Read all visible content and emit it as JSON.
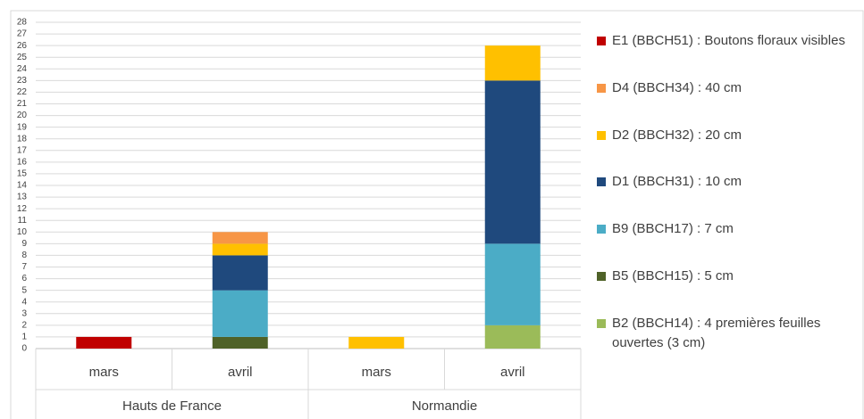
{
  "chart_data": {
    "type": "stacked_bar",
    "groups": [
      {
        "name": "Hauts de France",
        "categories": [
          "mars",
          "avril"
        ]
      },
      {
        "name": "Normandie",
        "categories": [
          "mars",
          "avril"
        ]
      }
    ],
    "series": [
      {
        "name": "B2 (BBCH14) : 4 premières feuilles ouvertes (3 cm)",
        "color": "#9bbb59",
        "values": [
          0,
          0,
          0,
          2
        ]
      },
      {
        "name": "B5 (BBCH15) : 5 cm",
        "color": "#4f6228",
        "values": [
          0,
          1,
          0,
          0
        ]
      },
      {
        "name": "B9 (BBCH17) : 7 cm",
        "color": "#4bacc6",
        "values": [
          0,
          4,
          0,
          7
        ]
      },
      {
        "name": "D1 (BBCH31) : 10 cm",
        "color": "#1f497d",
        "values": [
          0,
          3,
          0,
          14
        ]
      },
      {
        "name": "D2 (BBCH32) : 20 cm",
        "color": "#ffc000",
        "values": [
          0,
          1,
          1,
          3
        ]
      },
      {
        "name": "D4 (BBCH34) : 40 cm",
        "color": "#f79646",
        "values": [
          0,
          1,
          0,
          0
        ]
      },
      {
        "name": "E1 (BBCH51) : Boutons floraux visibles",
        "color": "#c00000",
        "values": [
          1,
          0,
          0,
          0
        ]
      }
    ],
    "ylim": [
      0,
      28
    ],
    "yticks": [
      0,
      1,
      2,
      3,
      4,
      5,
      6,
      7,
      8,
      9,
      10,
      11,
      12,
      13,
      14,
      15,
      16,
      17,
      18,
      19,
      20,
      21,
      22,
      23,
      24,
      25,
      26,
      27,
      28
    ],
    "grid": true
  }
}
